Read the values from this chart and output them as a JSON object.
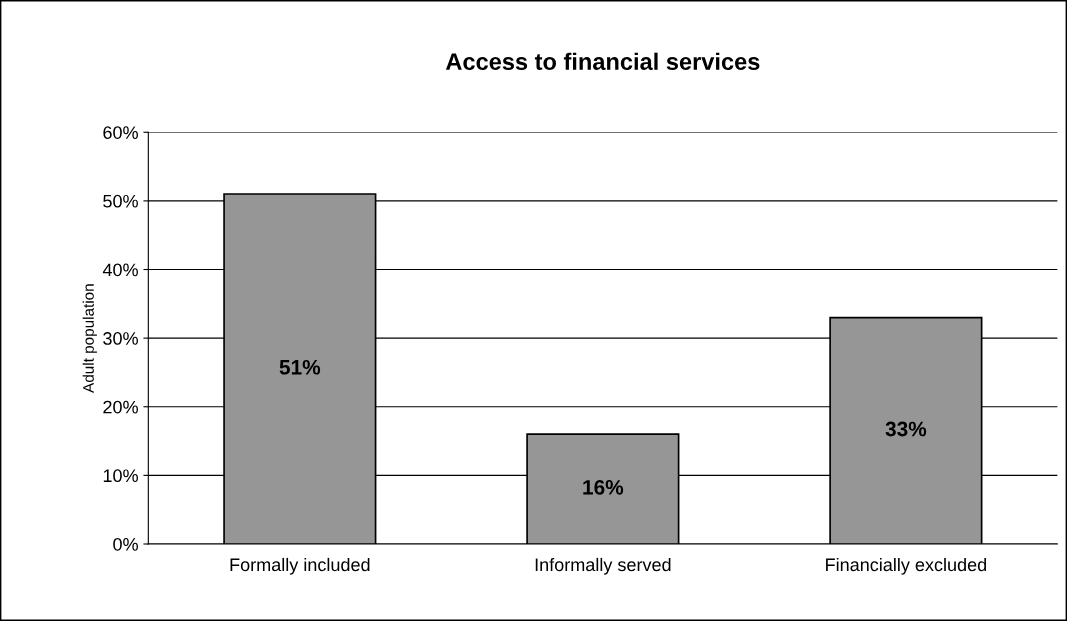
{
  "chart_data": {
    "type": "bar",
    "title": "Access to financial services",
    "ylabel": "Adult population",
    "categories": [
      "Formally included",
      "Informally served",
      "Financially excluded"
    ],
    "values": [
      51,
      16,
      33
    ],
    "color": "#969696",
    "value_labels": [
      "51%",
      "16%",
      "33%"
    ],
    "ylim": [
      0,
      60
    ],
    "yticks": [
      {
        "value": 0,
        "label": "0%"
      },
      {
        "value": 10,
        "label": "10%"
      },
      {
        "value": 20,
        "label": "20%"
      },
      {
        "value": 30,
        "label": "30%"
      },
      {
        "value": 40,
        "label": "40%"
      },
      {
        "value": 50,
        "label": "50%"
      },
      {
        "value": 60,
        "label": "60%"
      }
    ],
    "grid": "y",
    "legend": false
  }
}
